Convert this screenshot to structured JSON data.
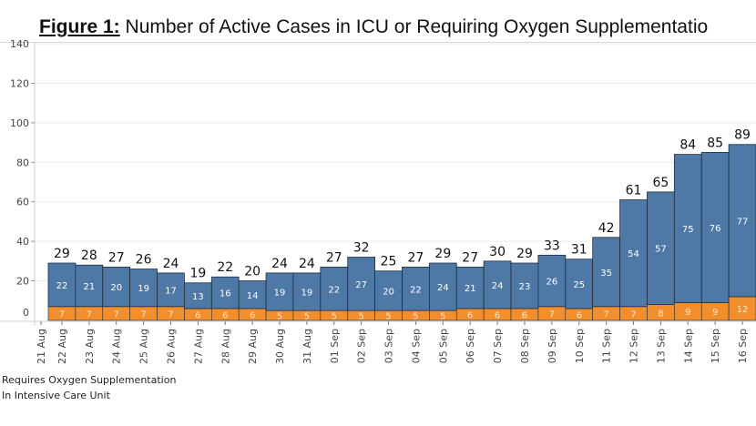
{
  "chart_data": {
    "type": "bar",
    "stacked": true,
    "title_prefix": "Figure 1:",
    "title": "Number of Active Cases in ICU or Requiring Oxygen Supplementatio",
    "xlabel": "",
    "ylabel": "",
    "ylim": [
      0,
      140
    ],
    "yticks": [
      0,
      20,
      40,
      60,
      80,
      100,
      120,
      140
    ],
    "grid": true,
    "tick_labels": [
      "21 Aug",
      "22 Aug",
      "23 Aug",
      "24 Aug",
      "25 Aug",
      "26 Aug",
      "27 Aug",
      "28 Aug",
      "29 Aug",
      "30 Aug",
      "31 Aug",
      "01 Sep",
      "02 Sep",
      "03 Sep",
      "04 Sep",
      "05 Sep",
      "06 Sep",
      "07 Sep",
      "08 Sep",
      "09 Sep",
      "10 Sep",
      "11 Sep",
      "12 Sep",
      "13 Sep",
      "14 Sep",
      "15 Sep",
      "16 Sep"
    ],
    "categories": [
      "22 Aug",
      "23 Aug",
      "24 Aug",
      "25 Aug",
      "26 Aug",
      "27 Aug",
      "28 Aug",
      "29 Aug",
      "30 Aug",
      "31 Aug",
      "01 Sep",
      "02 Sep",
      "03 Sep",
      "04 Sep",
      "05 Sep",
      "06 Sep",
      "07 Sep",
      "08 Sep",
      "09 Sep",
      "10 Sep",
      "11 Sep",
      "12 Sep",
      "13 Sep",
      "14 Sep",
      "15 Sep",
      "16 Sep"
    ],
    "series": [
      {
        "name": "In Intensive Care Unit",
        "color": "#f28e2b",
        "values": [
          7,
          7,
          7,
          7,
          7,
          6,
          6,
          6,
          5,
          5,
          5,
          5,
          5,
          5,
          5,
          6,
          6,
          6,
          7,
          6,
          7,
          7,
          8,
          9,
          9,
          12
        ]
      },
      {
        "name": "Requires Oxygen Supplementation",
        "color": "#4e79a7",
        "values": [
          22,
          21,
          20,
          19,
          17,
          13,
          16,
          14,
          19,
          19,
          22,
          27,
          20,
          22,
          24,
          21,
          24,
          23,
          26,
          25,
          35,
          54,
          57,
          75,
          76,
          77
        ]
      }
    ],
    "totals": [
      29,
      28,
      27,
      26,
      24,
      19,
      22,
      20,
      24,
      24,
      27,
      32,
      25,
      27,
      29,
      27,
      30,
      29,
      33,
      31,
      42,
      61,
      65,
      84,
      85,
      89
    ],
    "legend": [
      "Requires Oxygen Supplementation",
      "In Intensive Care Unit"
    ],
    "legend_position": "bottom-left"
  }
}
